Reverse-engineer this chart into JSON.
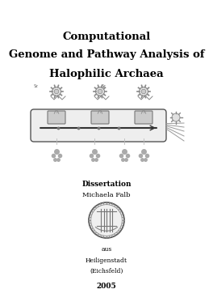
{
  "background_color": "#ffffff",
  "title_line1": "Computational",
  "title_line2": "Genome and Pathway Analysis of",
  "title_line3": "Halophilic Archaea",
  "title_fontsize": 9.5,
  "title_bold": true,
  "dissertation_label": "Dissertation",
  "dissertation_fontsize": 6.5,
  "dissertation_bold": true,
  "author_name": "Michaela Falb",
  "author_fontsize": 6,
  "aus_text": "aus",
  "aus_fontsize": 5.5,
  "city_text": "Heiligenstadt",
  "city_fontsize": 5.5,
  "region_text": "(Eichsfeld)",
  "region_fontsize": 5.5,
  "year_text": "2005",
  "year_fontsize": 6.5,
  "year_bold": true
}
